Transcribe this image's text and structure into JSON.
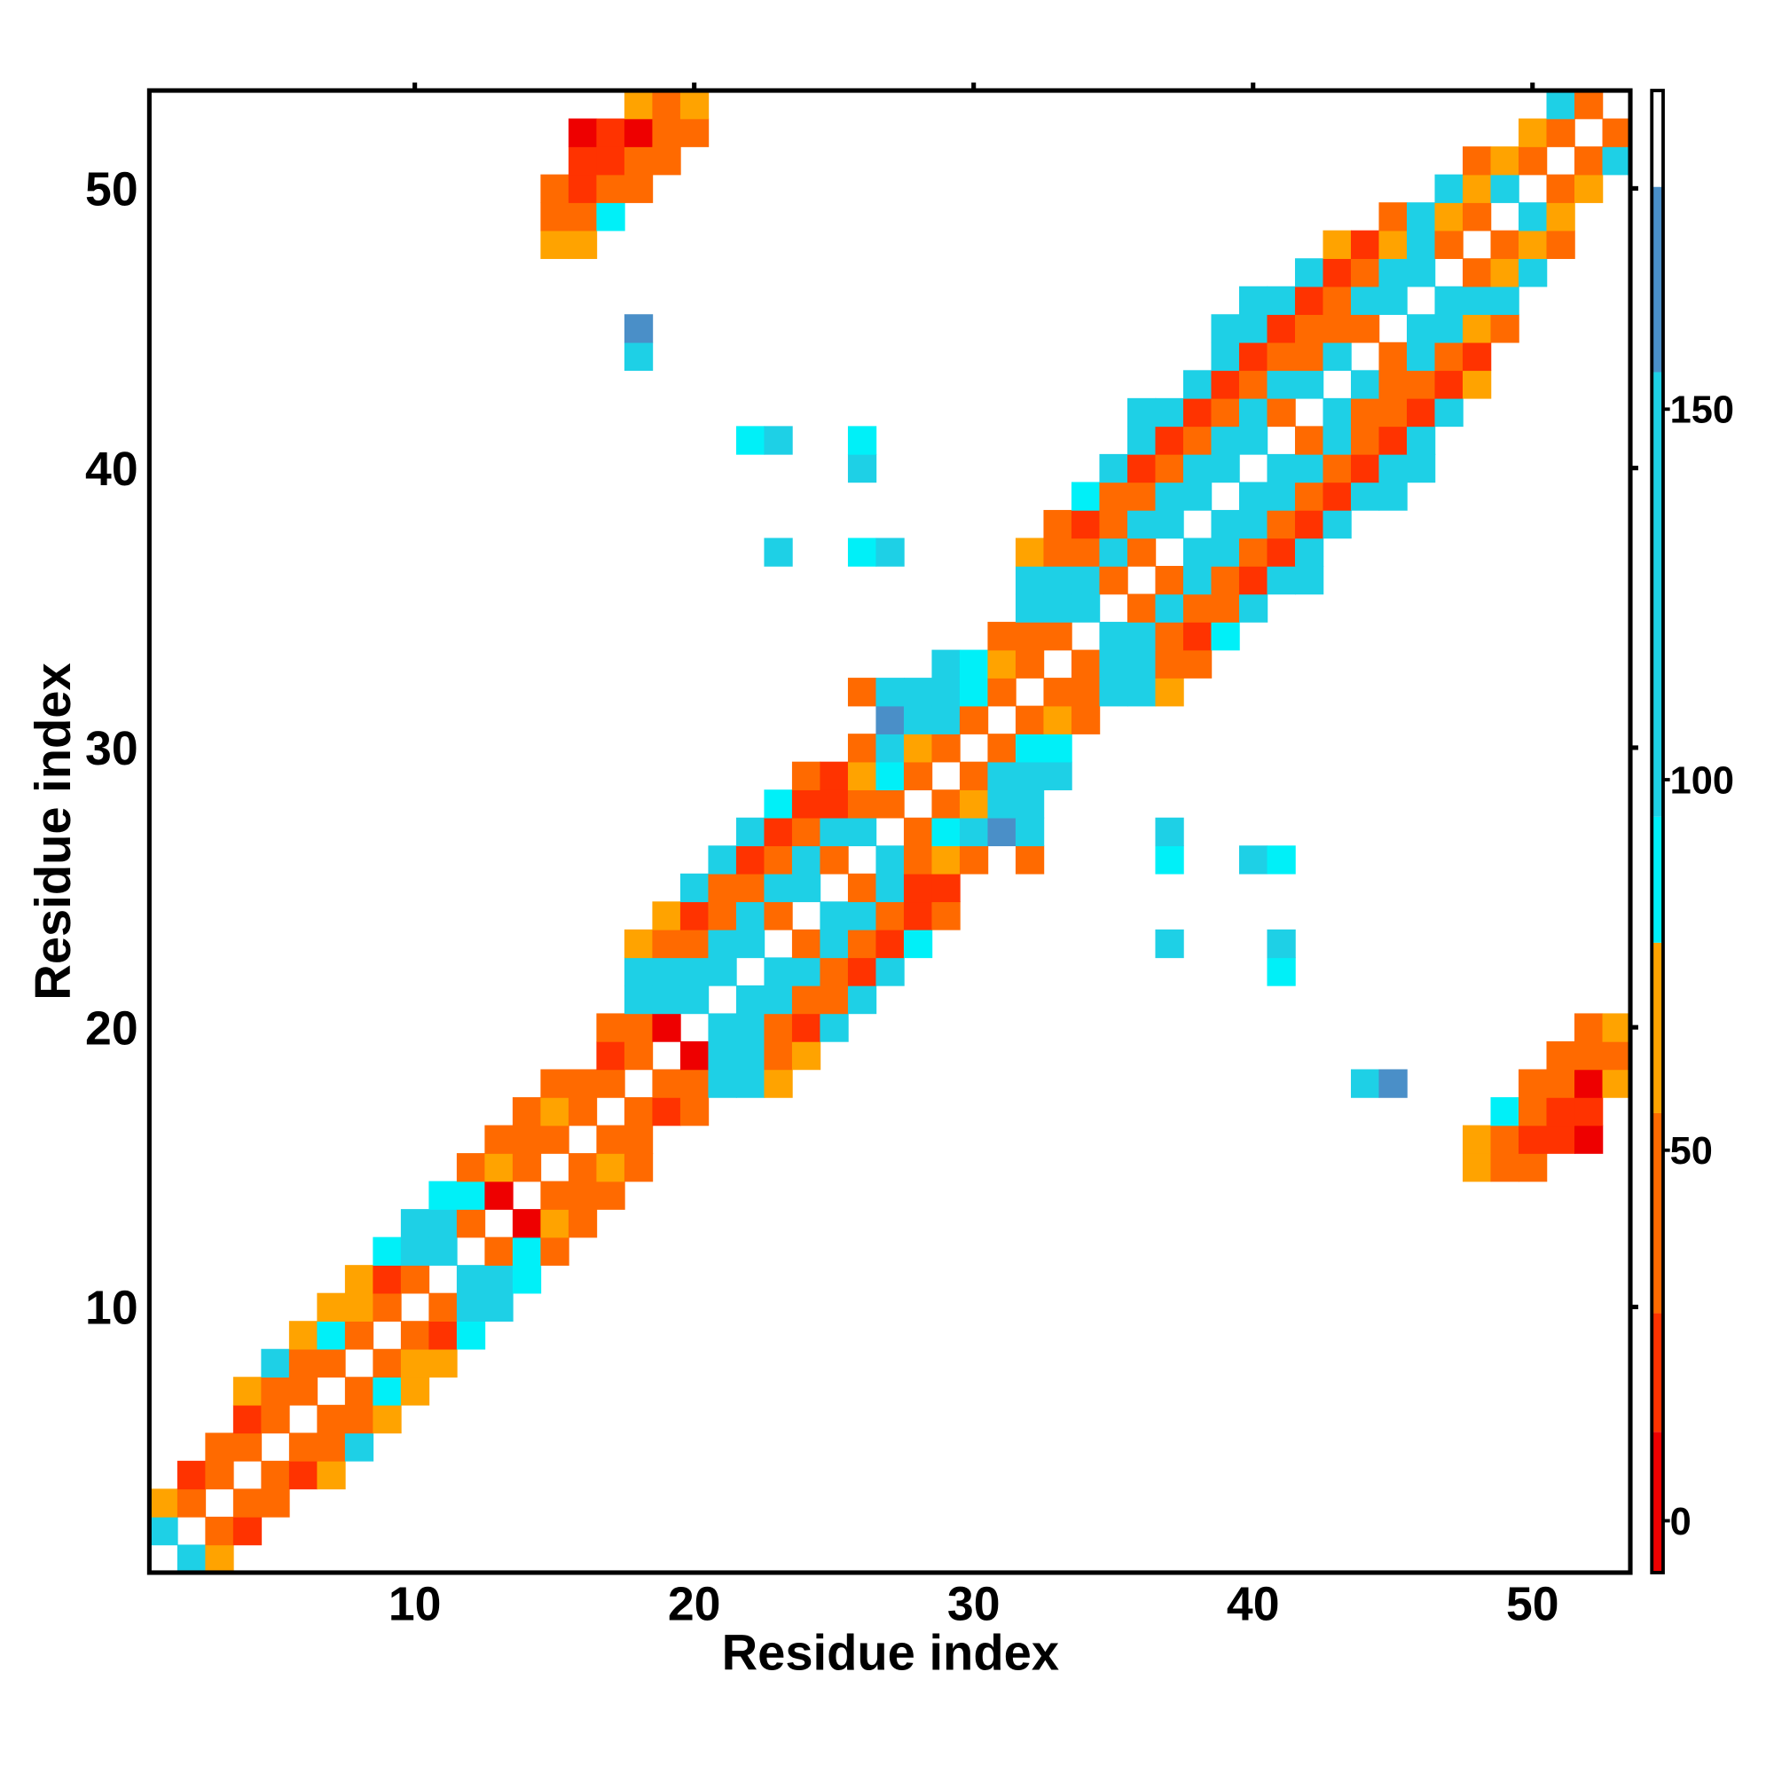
{
  "chart_data": {
    "type": "heatmap",
    "x_label": "Residue index",
    "y_label": "Residue index",
    "xlim": [
      0.5,
      53.5
    ],
    "ylim": [
      0.5,
      53.5
    ],
    "xticks": [
      10,
      20,
      30,
      40,
      50
    ],
    "yticks": [
      10,
      20,
      30,
      40,
      50
    ],
    "symmetric": true,
    "cells": [
      [
        1,
        2,
        120
      ],
      [
        1,
        3,
        65
      ],
      [
        2,
        3,
        40
      ],
      [
        2,
        4,
        20
      ],
      [
        3,
        4,
        40
      ],
      [
        3,
        5,
        40
      ],
      [
        4,
        5,
        40
      ],
      [
        4,
        6,
        20
      ],
      [
        4,
        7,
        65
      ],
      [
        5,
        6,
        40
      ],
      [
        5,
        7,
        40
      ],
      [
        5,
        8,
        120
      ],
      [
        6,
        7,
        40
      ],
      [
        6,
        8,
        40
      ],
      [
        6,
        9,
        65
      ],
      [
        7,
        8,
        40
      ],
      [
        7,
        9,
        88
      ],
      [
        7,
        10,
        65
      ],
      [
        8,
        9,
        40
      ],
      [
        8,
        10,
        65
      ],
      [
        8,
        11,
        65
      ],
      [
        9,
        10,
        40
      ],
      [
        9,
        11,
        20
      ],
      [
        9,
        12,
        88
      ],
      [
        10,
        11,
        40
      ],
      [
        10,
        12,
        120
      ],
      [
        10,
        13,
        120
      ],
      [
        11,
        12,
        120
      ],
      [
        11,
        13,
        120
      ],
      [
        11,
        14,
        88
      ],
      [
        12,
        13,
        40
      ],
      [
        12,
        14,
        88
      ],
      [
        12,
        15,
        40
      ],
      [
        13,
        14,
        0
      ],
      [
        13,
        15,
        65
      ],
      [
        13,
        16,
        40
      ],
      [
        14,
        15,
        40
      ],
      [
        14,
        16,
        40
      ],
      [
        14,
        17,
        40
      ],
      [
        15,
        16,
        40
      ],
      [
        15,
        17,
        65
      ],
      [
        15,
        18,
        40
      ],
      [
        15,
        48,
        65
      ],
      [
        15,
        49,
        40
      ],
      [
        15,
        50,
        40
      ],
      [
        16,
        17,
        40
      ],
      [
        16,
        18,
        40
      ],
      [
        16,
        48,
        65
      ],
      [
        16,
        49,
        40
      ],
      [
        16,
        50,
        20
      ],
      [
        16,
        51,
        20
      ],
      [
        16,
        52,
        0
      ],
      [
        17,
        18,
        40
      ],
      [
        17,
        19,
        20
      ],
      [
        17,
        20,
        40
      ],
      [
        17,
        49,
        88
      ],
      [
        17,
        50,
        40
      ],
      [
        17,
        51,
        20
      ],
      [
        17,
        52,
        20
      ],
      [
        18,
        19,
        40
      ],
      [
        18,
        20,
        40
      ],
      [
        18,
        21,
        120
      ],
      [
        18,
        22,
        120
      ],
      [
        18,
        23,
        65
      ],
      [
        18,
        44,
        120
      ],
      [
        18,
        45,
        165
      ],
      [
        18,
        50,
        40
      ],
      [
        18,
        51,
        40
      ],
      [
        18,
        52,
        0
      ],
      [
        18,
        53,
        65
      ],
      [
        19,
        20,
        0
      ],
      [
        19,
        21,
        120
      ],
      [
        19,
        22,
        120
      ],
      [
        19,
        23,
        40
      ],
      [
        19,
        24,
        65
      ],
      [
        19,
        51,
        40
      ],
      [
        19,
        52,
        40
      ],
      [
        19,
        53,
        40
      ],
      [
        20,
        21,
        120
      ],
      [
        20,
        22,
        120
      ],
      [
        20,
        23,
        40
      ],
      [
        20,
        24,
        20
      ],
      [
        20,
        25,
        120
      ],
      [
        20,
        52,
        40
      ],
      [
        20,
        53,
        65
      ],
      [
        21,
        22,
        120
      ],
      [
        21,
        23,
        120
      ],
      [
        21,
        24,
        40
      ],
      [
        21,
        25,
        40
      ],
      [
        21,
        26,
        120
      ],
      [
        22,
        23,
        120
      ],
      [
        22,
        24,
        120
      ],
      [
        22,
        25,
        40
      ],
      [
        22,
        26,
        20
      ],
      [
        22,
        27,
        120
      ],
      [
        22,
        41,
        88
      ],
      [
        23,
        24,
        40
      ],
      [
        23,
        25,
        120
      ],
      [
        23,
        26,
        40
      ],
      [
        23,
        27,
        20
      ],
      [
        23,
        28,
        88
      ],
      [
        23,
        37,
        120
      ],
      [
        23,
        41,
        120
      ],
      [
        24,
        25,
        120
      ],
      [
        24,
        26,
        120
      ],
      [
        24,
        27,
        40
      ],
      [
        24,
        28,
        20
      ],
      [
        24,
        29,
        40
      ],
      [
        25,
        26,
        40
      ],
      [
        25,
        27,
        120
      ],
      [
        25,
        28,
        20
      ],
      [
        25,
        29,
        20
      ],
      [
        26,
        27,
        120
      ],
      [
        26,
        28,
        40
      ],
      [
        26,
        29,
        65
      ],
      [
        26,
        30,
        40
      ],
      [
        26,
        32,
        40
      ],
      [
        26,
        37,
        88
      ],
      [
        26,
        40,
        120
      ],
      [
        26,
        41,
        88
      ],
      [
        27,
        28,
        40
      ],
      [
        27,
        29,
        88
      ],
      [
        27,
        30,
        120
      ],
      [
        27,
        31,
        165
      ],
      [
        27,
        32,
        120
      ],
      [
        27,
        37,
        120
      ],
      [
        28,
        29,
        40
      ],
      [
        28,
        30,
        65
      ],
      [
        28,
        31,
        120
      ],
      [
        28,
        32,
        120
      ],
      [
        29,
        30,
        40
      ],
      [
        29,
        31,
        120
      ],
      [
        29,
        32,
        120
      ],
      [
        29,
        33,
        120
      ],
      [
        30,
        31,
        40
      ],
      [
        30,
        32,
        88
      ],
      [
        30,
        33,
        88
      ],
      [
        31,
        32,
        40
      ],
      [
        31,
        33,
        65
      ],
      [
        31,
        34,
        40
      ],
      [
        32,
        33,
        40
      ],
      [
        32,
        34,
        40
      ],
      [
        32,
        35,
        120
      ],
      [
        32,
        36,
        120
      ],
      [
        32,
        37,
        65
      ],
      [
        33,
        34,
        40
      ],
      [
        33,
        35,
        120
      ],
      [
        33,
        36,
        120
      ],
      [
        33,
        37,
        40
      ],
      [
        33,
        38,
        40
      ],
      [
        34,
        35,
        120
      ],
      [
        34,
        36,
        120
      ],
      [
        34,
        37,
        40
      ],
      [
        34,
        38,
        20
      ],
      [
        34,
        39,
        88
      ],
      [
        35,
        36,
        40
      ],
      [
        35,
        37,
        120
      ],
      [
        35,
        38,
        40
      ],
      [
        35,
        39,
        40
      ],
      [
        35,
        40,
        120
      ],
      [
        36,
        37,
        40
      ],
      [
        36,
        38,
        120
      ],
      [
        36,
        39,
        40
      ],
      [
        36,
        40,
        20
      ],
      [
        36,
        41,
        120
      ],
      [
        36,
        42,
        120
      ],
      [
        37,
        38,
        120
      ],
      [
        37,
        39,
        120
      ],
      [
        37,
        40,
        40
      ],
      [
        37,
        41,
        20
      ],
      [
        37,
        42,
        120
      ],
      [
        38,
        39,
        120
      ],
      [
        38,
        40,
        120
      ],
      [
        38,
        41,
        40
      ],
      [
        38,
        42,
        20
      ],
      [
        38,
        43,
        120
      ],
      [
        39,
        40,
        120
      ],
      [
        39,
        41,
        120
      ],
      [
        39,
        42,
        40
      ],
      [
        39,
        43,
        20
      ],
      [
        39,
        44,
        120
      ],
      [
        39,
        45,
        120
      ],
      [
        40,
        41,
        120
      ],
      [
        40,
        42,
        120
      ],
      [
        40,
        43,
        40
      ],
      [
        40,
        44,
        20
      ],
      [
        40,
        45,
        120
      ],
      [
        40,
        46,
        120
      ],
      [
        41,
        42,
        40
      ],
      [
        41,
        43,
        120
      ],
      [
        41,
        44,
        40
      ],
      [
        41,
        45,
        20
      ],
      [
        41,
        46,
        120
      ],
      [
        42,
        43,
        120
      ],
      [
        42,
        44,
        40
      ],
      [
        42,
        45,
        40
      ],
      [
        42,
        46,
        20
      ],
      [
        42,
        47,
        120
      ],
      [
        43,
        44,
        120
      ],
      [
        43,
        45,
        40
      ],
      [
        43,
        46,
        40
      ],
      [
        43,
        47,
        20
      ],
      [
        43,
        48,
        65
      ],
      [
        44,
        45,
        40
      ],
      [
        44,
        46,
        120
      ],
      [
        44,
        47,
        40
      ],
      [
        44,
        48,
        20
      ],
      [
        45,
        46,
        120
      ],
      [
        45,
        47,
        120
      ],
      [
        45,
        48,
        65
      ],
      [
        45,
        49,
        40
      ],
      [
        46,
        47,
        120
      ],
      [
        46,
        48,
        120
      ],
      [
        46,
        49,
        120
      ],
      [
        47,
        48,
        40
      ],
      [
        47,
        49,
        65
      ],
      [
        47,
        50,
        120
      ],
      [
        48,
        49,
        40
      ],
      [
        48,
        50,
        65
      ],
      [
        48,
        51,
        40
      ],
      [
        49,
        50,
        120
      ],
      [
        49,
        51,
        65
      ],
      [
        50,
        51,
        40
      ],
      [
        50,
        52,
        65
      ],
      [
        51,
        52,
        40
      ],
      [
        51,
        53,
        120
      ],
      [
        52,
        53,
        40
      ]
    ],
    "colorbar": {
      "lim": [
        -7,
        193
      ],
      "ticks": [
        0,
        50,
        100,
        150
      ],
      "segments": [
        {
          "from": -7,
          "to": 12,
          "color": "#ee0000"
        },
        {
          "from": 12,
          "to": 28,
          "color": "#ff3300"
        },
        {
          "from": 28,
          "to": 55,
          "color": "#ff6a00"
        },
        {
          "from": 55,
          "to": 78,
          "color": "#ffa300"
        },
        {
          "from": 78,
          "to": 95,
          "color": "#00f0f8"
        },
        {
          "from": 95,
          "to": 155,
          "color": "#1ed0e6"
        },
        {
          "from": 155,
          "to": 180,
          "color": "#4a8fc8"
        },
        {
          "from": 180,
          "to": 193,
          "color": "#ffffff"
        }
      ]
    }
  }
}
